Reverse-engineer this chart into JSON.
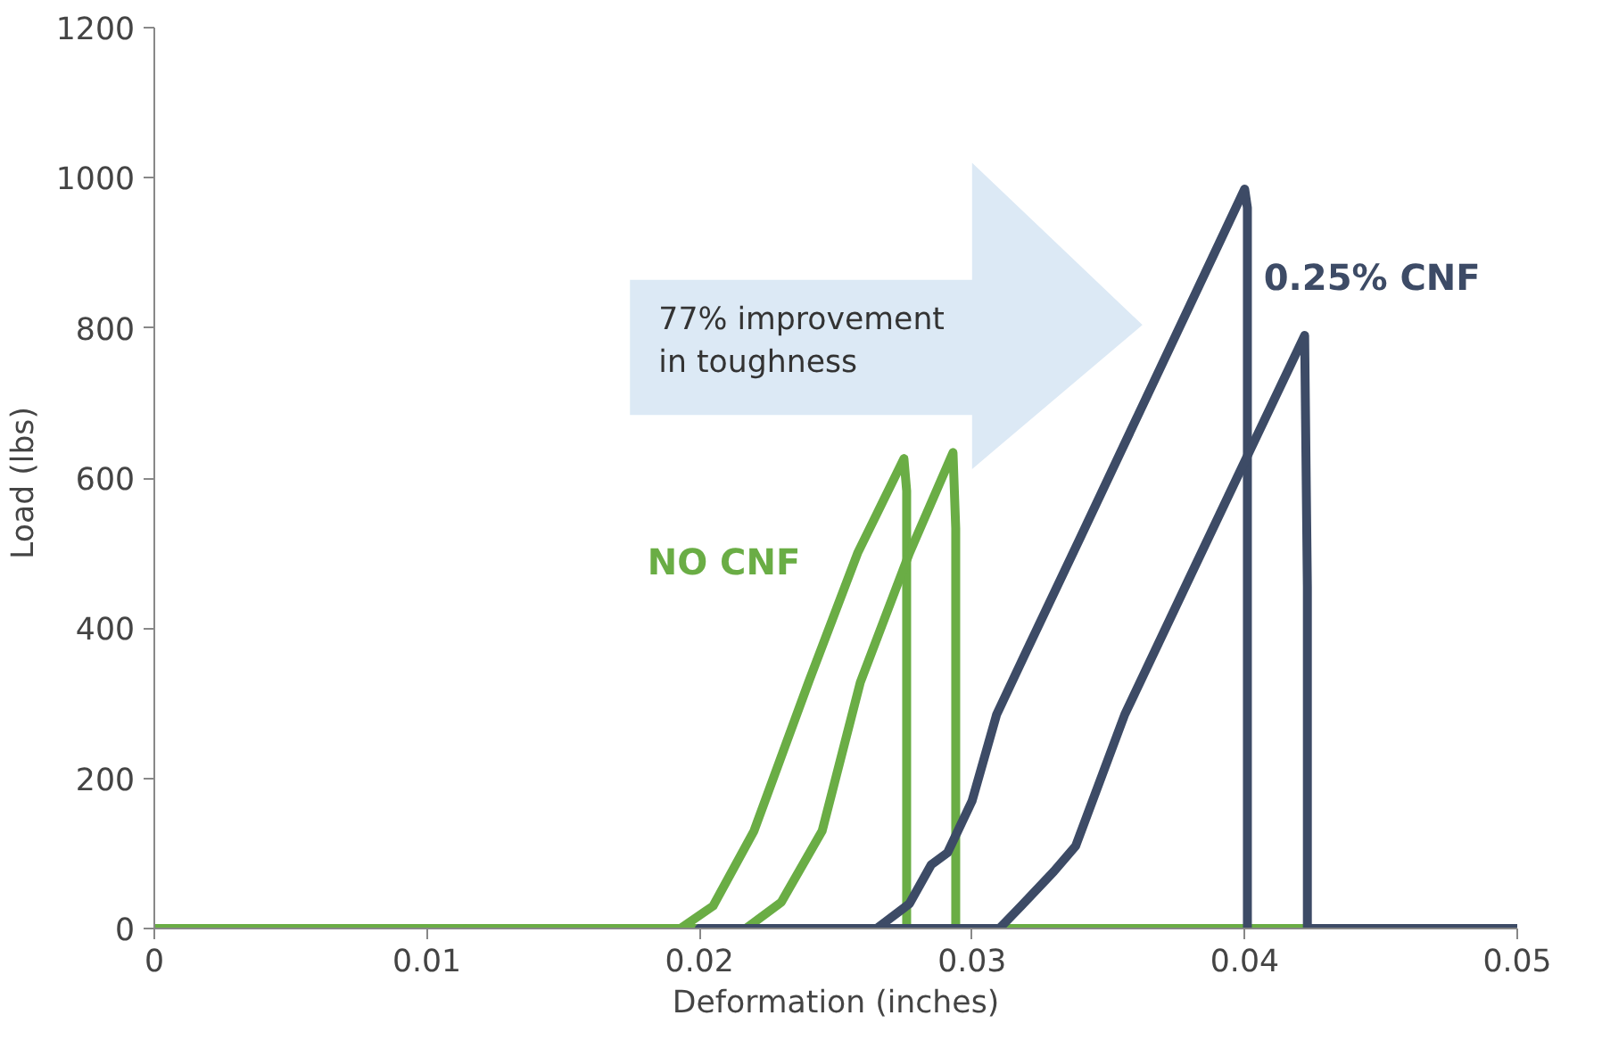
{
  "chart_data": {
    "type": "line",
    "xlabel": "Deformation (inches)",
    "ylabel": "Load  (lbs)",
    "xlim": [
      0,
      0.05
    ],
    "xticks": [
      0,
      0.01,
      0.02,
      0.03,
      0.04,
      0.05
    ],
    "ylim": [
      0,
      1200
    ],
    "yticks": [
      0,
      200,
      400,
      600,
      800,
      1000,
      1200
    ],
    "grid": false,
    "legend": false,
    "line_style": "solid",
    "annotations": [
      "77% improvement\nin toughness"
    ],
    "series": [
      {
        "name": "NO CNF",
        "color": "#6aad45",
        "x": [
          0,
          0.0193,
          0.0205,
          0.022,
          0.024,
          0.0258,
          0.0275,
          0.0276,
          0.0276,
          0.0276,
          0.0276,
          0.043
        ],
        "values": [
          0,
          0,
          30,
          130,
          328,
          500,
          626,
          583,
          260,
          38,
          0,
          0
        ]
      },
      {
        "color": "#6aad45",
        "x": [
          0.0115,
          0.0217,
          0.023,
          0.0245,
          0.0259,
          0.0277,
          0.0293,
          0.0294,
          0.0294,
          0.0294
        ],
        "values": [
          0,
          0,
          35,
          130,
          328,
          500,
          634,
          533,
          192,
          0
        ]
      },
      {
        "name": "0.25% CNF",
        "color": "#3d4b66",
        "x": [
          0.02,
          0.0265,
          0.0277,
          0.0285,
          0.0291,
          0.03,
          0.0309,
          0.032,
          0.034,
          0.036,
          0.038,
          0.04,
          0.0401,
          0.0401,
          0.0401,
          0.0401
        ],
        "values": [
          0,
          0,
          33,
          85,
          101,
          170,
          285,
          370,
          523,
          677,
          831,
          985,
          960,
          455,
          75,
          0
        ]
      },
      {
        "color": "#3d4b66",
        "x": [
          0.02,
          0.031,
          0.0318,
          0.033,
          0.0338,
          0.0356,
          0.038,
          0.04,
          0.0422,
          0.0423,
          0.0423,
          0.0423,
          0.05
        ],
        "values": [
          0,
          0,
          30,
          76,
          110,
          285,
          469,
          622,
          790,
          455,
          100,
          0,
          0
        ]
      }
    ]
  }
}
